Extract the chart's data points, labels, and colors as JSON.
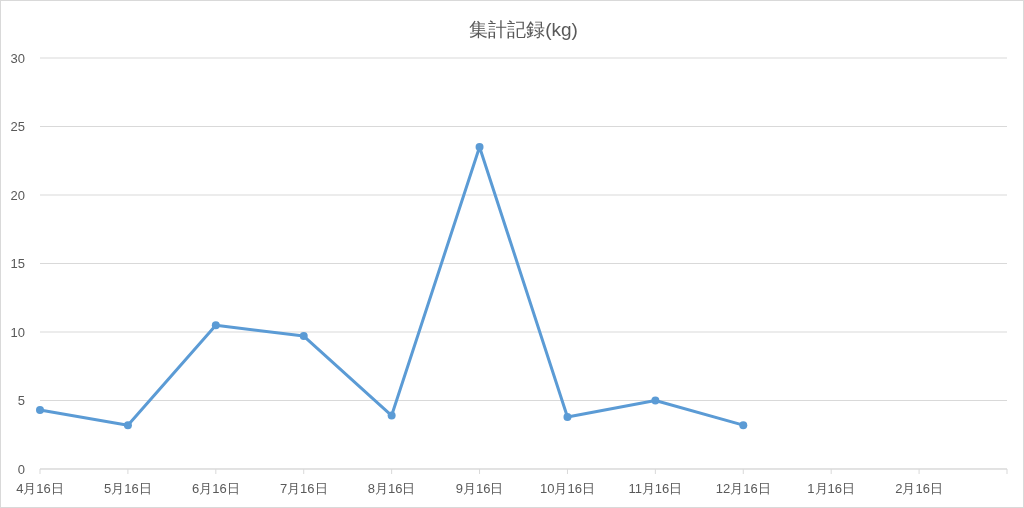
{
  "chart_data": {
    "type": "line",
    "title": "集計記録(kg)",
    "categories": [
      "4月16日",
      "5月16日",
      "6月16日",
      "7月16日",
      "8月16日",
      "9月16日",
      "10月16日",
      "11月16日",
      "12月16日",
      "1月16日",
      "2月16日",
      null
    ],
    "series": [
      {
        "color": "#5b9bd5",
        "values": [
          4.3,
          3.2,
          10.5,
          9.7,
          3.9,
          23.5,
          3.8,
          5.0,
          3.2,
          null,
          null,
          null
        ]
      }
    ],
    "ylim": [
      0,
      30
    ],
    "yticks": [
      0,
      5,
      10,
      15,
      20,
      25,
      30
    ],
    "grid": "y",
    "marker": "circle",
    "line_style": "solid"
  }
}
